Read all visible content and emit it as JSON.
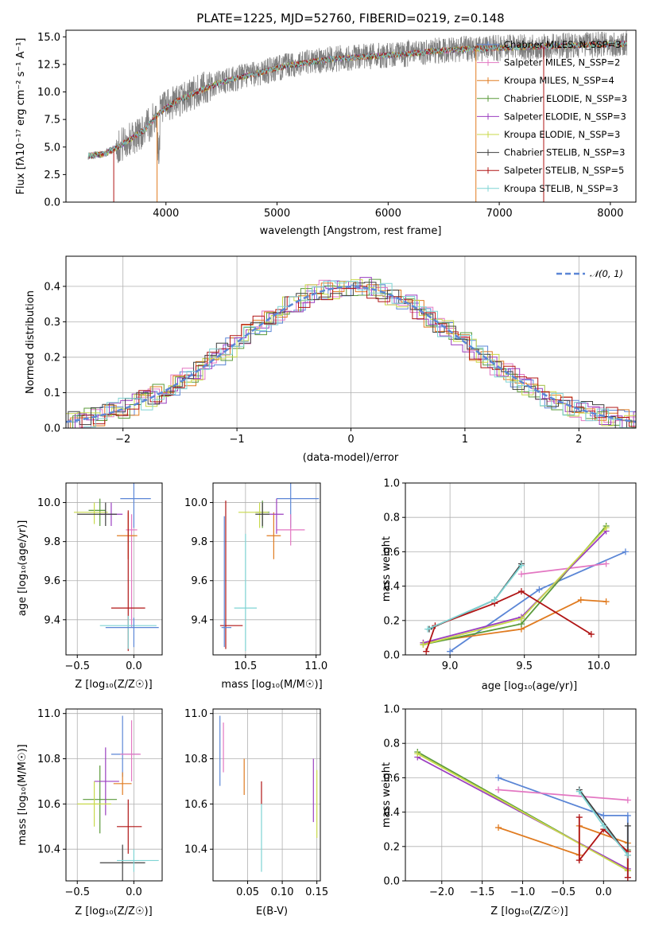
{
  "colors": {
    "chabrier_miles": "#5b86d6",
    "salpeter_miles": "#e377c2",
    "kroupa_miles": "#e07b20",
    "chabrier_elodie": "#5a9a3a",
    "salpeter_elodie": "#9b3fc0",
    "kroupa_elodie": "#c8d94a",
    "chabrier_stelib": "#404040",
    "salpeter_stelib": "#b01515",
    "kroupa_stelib": "#7fd4d4",
    "observed": "#808080",
    "gaussian": "#5b86d6"
  },
  "chart_data": [
    {
      "id": "spectrum",
      "type": "line",
      "title": "PLATE=1225, MJD=52760, FIBERID=0219, z=0.148",
      "xlabel": "wavelength [Angstrom, rest frame]",
      "ylabel": "Flux [fλ10⁻¹⁷ erg cm⁻² s⁻¹ A⁻¹]",
      "xlim": [
        3100,
        8230
      ],
      "ylim": [
        0,
        15.6
      ],
      "xticks": [
        "4000",
        "5000",
        "6000",
        "7000",
        "8000"
      ],
      "yticks": [
        "0.0",
        "2.5",
        "5.0",
        "7.5",
        "10.0",
        "12.5",
        "15.0"
      ],
      "legend": {
        "placement": "top-right",
        "entries": [
          "Chabrier MILES, N_SSP=3",
          "Salpeter MILES, N_SSP=2",
          "Kroupa MILES, N_SSP=4",
          "Chabrier ELODIE, N_SSP=3",
          "Salpeter ELODIE, N_SSP=3",
          "Kroupa ELODIE, N_SSP=3",
          "Chabrier STELIB, N_SSP=3",
          "Salpeter STELIB, N_SSP=5",
          "Kroupa STELIB, N_SSP=3"
        ]
      },
      "continuum": {
        "x": [
          3300,
          3450,
          3600,
          3800,
          3950,
          4100,
          4300,
          4500,
          4700,
          4900,
          5100,
          5300,
          5500,
          5800,
          6100,
          6400,
          6700,
          7000,
          7300,
          7600,
          7900,
          8150
        ],
        "y": [
          4.2,
          4.4,
          5.2,
          6.5,
          8.2,
          9.2,
          10.1,
          10.9,
          11.4,
          11.9,
          12.4,
          12.7,
          13.0,
          13.2,
          13.4,
          13.7,
          13.9,
          14.0,
          14.1,
          14.2,
          14.3,
          14.4
        ]
      }
    },
    {
      "id": "residuals",
      "type": "line",
      "xlabel": "(data-model)/error",
      "ylabel": "Normed distribution",
      "xlim": [
        -2.5,
        2.5
      ],
      "ylim": [
        0,
        0.485
      ],
      "xticks": [
        "−2",
        "−1",
        "0",
        "1",
        "2"
      ],
      "yticks": [
        "0.0",
        "0.1",
        "0.2",
        "0.3",
        "0.4"
      ],
      "legend": {
        "placement": "top-right",
        "entries": [
          "𝒩(0, 1)"
        ]
      }
    },
    {
      "id": "age_vs_Z",
      "type": "scatter",
      "xlabel": "Z [log₁₀(Z/Z☉)]",
      "ylabel": "age  [log₁₀(age/yr)]",
      "xlim": [
        -0.6,
        0.25
      ],
      "ylim": [
        9.22,
        10.1
      ],
      "xticks": [
        "−0.5",
        "0.0"
      ],
      "yticks": [
        "9.4",
        "9.6",
        "9.8",
        "10.0"
      ],
      "points": [
        {
          "x": 0.0,
          "y": 10.02,
          "xerr": [
            0.12,
            0.15
          ],
          "yerr": [
            0.15,
            0.08
          ]
        },
        {
          "x": -0.02,
          "y": 9.86,
          "xerr": [
            0.05,
            0.05
          ],
          "yerr": [
            0.5,
            0.08
          ]
        },
        {
          "x": -0.05,
          "y": 9.83,
          "xerr": [
            0.1,
            0.08
          ],
          "yerr": [
            0.12,
            0.12
          ]
        },
        {
          "x": -0.3,
          "y": 9.96,
          "xerr": [
            0.1,
            0.05
          ],
          "yerr": [
            0.08,
            0.06
          ]
        },
        {
          "x": -0.2,
          "y": 9.94,
          "xerr": [
            0.1,
            0.1
          ],
          "yerr": [
            0.06,
            0.06
          ]
        },
        {
          "x": -0.35,
          "y": 9.95,
          "xerr": [
            0.18,
            0.12
          ],
          "yerr": [
            0.06,
            0.05
          ]
        },
        {
          "x": -0.25,
          "y": 9.94,
          "xerr": [
            0.25,
            0.1
          ],
          "yerr": [
            0.06,
            0.06
          ]
        },
        {
          "x": -0.05,
          "y": 9.46,
          "xerr": [
            0.15,
            0.15
          ],
          "yerr": [
            0.22,
            0.5
          ]
        },
        {
          "x": -0.05,
          "y": 9.37,
          "xerr": [
            0.25,
            0.25
          ],
          "yerr": [
            0.12,
            0.05
          ]
        },
        {
          "x": 0.0,
          "y": 9.36,
          "xerr": [
            0.25,
            0.22
          ],
          "yerr": [
            0.1,
            0.05
          ]
        }
      ]
    },
    {
      "id": "age_vs_mass",
      "type": "scatter",
      "xlabel": "mass [log₁₀(M/M☉)]",
      "ylabel": "",
      "xlim": [
        10.27,
        11.03
      ],
      "ylim": [
        9.22,
        10.1
      ],
      "xticks": [
        "10.5",
        "11.0"
      ],
      "yticks": [
        "9.4",
        "9.6",
        "9.8",
        "10.0"
      ],
      "points": [
        {
          "x": 10.82,
          "y": 10.02,
          "xerr": [
            0.1,
            0.2
          ],
          "yerr": [
            0.15,
            0.08
          ]
        },
        {
          "x": 10.82,
          "y": 9.86,
          "xerr": [
            0.1,
            0.1
          ],
          "yerr": [
            0.08,
            0.08
          ]
        },
        {
          "x": 10.7,
          "y": 9.83,
          "xerr": [
            0.05,
            0.05
          ],
          "yerr": [
            0.12,
            0.12
          ]
        },
        {
          "x": 10.62,
          "y": 9.95,
          "xerr": [
            0.05,
            0.05
          ],
          "yerr": [
            0.08,
            0.06
          ]
        },
        {
          "x": 10.72,
          "y": 9.94,
          "xerr": [
            0.05,
            0.05
          ],
          "yerr": [
            0.1,
            0.08
          ]
        },
        {
          "x": 10.6,
          "y": 9.95,
          "xerr": [
            0.15,
            0.06
          ],
          "yerr": [
            0.08,
            0.05
          ]
        },
        {
          "x": 10.62,
          "y": 9.94,
          "xerr": [
            0.05,
            0.05
          ],
          "yerr": [
            0.06,
            0.06
          ]
        },
        {
          "x": 10.36,
          "y": 9.37,
          "xerr": [
            0.04,
            0.12
          ],
          "yerr": [
            0.12,
            0.64
          ]
        },
        {
          "x": 10.5,
          "y": 9.46,
          "xerr": [
            0.08,
            0.08
          ],
          "yerr": [
            0.22,
            0.38
          ]
        },
        {
          "x": 10.35,
          "y": 9.36,
          "xerr": [
            0.02,
            0.05
          ],
          "yerr": [
            0.1,
            0.57
          ]
        }
      ]
    },
    {
      "id": "mass_weight_vs_age",
      "type": "line",
      "xlabel": "age  [log₁₀(age/yr)]",
      "ylabel": "mass weight",
      "xlim": [
        8.7,
        10.25
      ],
      "ylim": [
        0,
        1.0
      ],
      "xticks": [
        "9.0",
        "9.5",
        "10.0"
      ],
      "yticks": [
        "0.0",
        "0.2",
        "0.4",
        "0.6",
        "0.8",
        "1.0"
      ],
      "series": [
        {
          "key": "chabrier_miles",
          "x": [
            9.0,
            9.6,
            10.18
          ],
          "y": [
            0.02,
            0.38,
            0.6
          ]
        },
        {
          "key": "salpeter_miles",
          "x": [
            9.48,
            10.05
          ],
          "y": [
            0.47,
            0.53
          ]
        },
        {
          "key": "kroupa_miles",
          "x": [
            8.82,
            9.48,
            9.88,
            10.05
          ],
          "y": [
            0.07,
            0.15,
            0.32,
            0.31
          ]
        },
        {
          "key": "chabrier_elodie",
          "x": [
            8.82,
            9.48,
            10.05
          ],
          "y": [
            0.06,
            0.18,
            0.75
          ]
        },
        {
          "key": "salpeter_elodie",
          "x": [
            8.82,
            9.48,
            10.05
          ],
          "y": [
            0.07,
            0.22,
            0.72
          ]
        },
        {
          "key": "kroupa_elodie",
          "x": [
            8.82,
            9.48,
            10.05
          ],
          "y": [
            0.06,
            0.21,
            0.74
          ]
        },
        {
          "key": "chabrier_stelib",
          "x": [
            8.86,
            9.3,
            9.48
          ],
          "y": [
            0.15,
            0.32,
            0.53
          ]
        },
        {
          "key": "salpeter_stelib",
          "x": [
            8.84,
            8.9,
            9.3,
            9.48,
            9.95
          ],
          "y": [
            0.02,
            0.17,
            0.3,
            0.37,
            0.12
          ]
        },
        {
          "key": "kroupa_stelib",
          "x": [
            8.85,
            9.3,
            9.48
          ],
          "y": [
            0.15,
            0.32,
            0.52
          ]
        }
      ]
    },
    {
      "id": "mass_vs_Z",
      "type": "scatter",
      "xlabel": "Z [log₁₀(Z/Z☉)]",
      "ylabel": "mass [log₁₀(M/M☉)]",
      "xlim": [
        -0.6,
        0.25
      ],
      "ylim": [
        10.26,
        11.02
      ],
      "xticks": [
        "−0.5",
        "0.0"
      ],
      "yticks": [
        "10.4",
        "10.6",
        "10.8",
        "11.0"
      ],
      "points": [
        {
          "x": -0.1,
          "y": 10.82,
          "xerr": [
            0.1,
            0.15
          ],
          "yerr": [
            0.1,
            0.17
          ]
        },
        {
          "x": -0.02,
          "y": 10.82,
          "xerr": [
            0.1,
            0.08
          ],
          "yerr": [
            0.12,
            0.15
          ]
        },
        {
          "x": -0.1,
          "y": 10.69,
          "xerr": [
            0.08,
            0.08
          ],
          "yerr": [
            0.05,
            0.05
          ]
        },
        {
          "x": -0.3,
          "y": 10.62,
          "xerr": [
            0.15,
            0.15
          ],
          "yerr": [
            0.15,
            0.15
          ]
        },
        {
          "x": -0.25,
          "y": 10.7,
          "xerr": [
            0.1,
            0.12
          ],
          "yerr": [
            0.15,
            0.15
          ]
        },
        {
          "x": -0.35,
          "y": 10.6,
          "xerr": [
            0.15,
            0.15
          ],
          "yerr": [
            0.1,
            0.1
          ]
        },
        {
          "x": -0.1,
          "y": 10.34,
          "xerr": [
            0.2,
            0.2
          ],
          "yerr": [
            0.08,
            0.08
          ]
        },
        {
          "x": -0.05,
          "y": 10.5,
          "xerr": [
            0.1,
            0.12
          ],
          "yerr": [
            0.12,
            0.12
          ]
        },
        {
          "x": 0.0,
          "y": 10.35,
          "xerr": [
            0.15,
            0.22
          ],
          "yerr": [
            0.05,
            0.05
          ]
        }
      ]
    },
    {
      "id": "mass_vs_ebv",
      "type": "scatter",
      "xlabel": "E(B-V)",
      "ylabel": "",
      "xlim": [
        0.0,
        0.155
      ],
      "ylim": [
        10.26,
        11.02
      ],
      "xticks": [
        "0.05",
        "0.10",
        "0.15"
      ],
      "yticks": [
        "10.4",
        "10.6",
        "10.8",
        "11.0"
      ],
      "points": [
        {
          "key": "chabrier_miles",
          "x": 0.01,
          "y": 10.84,
          "xerr": [
            0,
            0
          ],
          "yerr": [
            0.16,
            0.15
          ]
        },
        {
          "key": "salpeter_miles",
          "x": 0.015,
          "y": 10.86,
          "xerr": [
            0,
            0
          ],
          "yerr": [
            0.12,
            0.1
          ]
        },
        {
          "key": "kroupa_miles",
          "x": 0.045,
          "y": 10.72,
          "xerr": [
            0,
            0
          ],
          "yerr": [
            0.08,
            0.08
          ]
        },
        {
          "key": "salpeter_stelib",
          "x": 0.07,
          "y": 10.65,
          "xerr": [
            0,
            0
          ],
          "yerr": [
            0.05,
            0.05
          ]
        },
        {
          "key": "kroupa_stelib",
          "x": 0.07,
          "y": 10.45,
          "xerr": [
            0,
            0
          ],
          "yerr": [
            0.15,
            0.15
          ]
        },
        {
          "key": "salpeter_elodie",
          "x": 0.145,
          "y": 10.66,
          "xerr": [
            0,
            0
          ],
          "yerr": [
            0.14,
            0.14
          ]
        },
        {
          "key": "kroupa_elodie",
          "x": 0.15,
          "y": 10.6,
          "xerr": [
            0,
            0
          ],
          "yerr": [
            0.15,
            0.15
          ]
        }
      ]
    },
    {
      "id": "mass_weight_vs_Z",
      "type": "line",
      "xlabel": "Z [log₁₀(Z/Z☉)]",
      "ylabel": "mass weight",
      "xlim": [
        -2.45,
        0.4
      ],
      "ylim": [
        0,
        1.0
      ],
      "xticks": [
        "−2.0",
        "−1.5",
        "−1.0",
        "−0.5",
        "0.0"
      ],
      "yticks": [
        "0.0",
        "0.2",
        "0.4",
        "0.6",
        "0.8",
        "1.0"
      ],
      "series": [
        {
          "key": "chabrier_miles",
          "x": [
            -1.3,
            0.0,
            0.3,
            0.3
          ],
          "y": [
            0.6,
            0.38,
            0.38,
            0.02
          ]
        },
        {
          "key": "salpeter_miles",
          "x": [
            -1.3,
            0.3
          ],
          "y": [
            0.53,
            0.47
          ]
        },
        {
          "key": "kroupa_miles",
          "x": [
            -1.3,
            -0.3,
            -0.3,
            0.3
          ],
          "y": [
            0.31,
            0.15,
            0.32,
            0.22
          ]
        },
        {
          "key": "chabrier_elodie",
          "x": [
            -2.3,
            0.3,
            0.3
          ],
          "y": [
            0.75,
            0.06,
            0.18
          ]
        },
        {
          "key": "salpeter_elodie",
          "x": [
            -2.3,
            0.3
          ],
          "y": [
            0.72,
            0.07
          ]
        },
        {
          "key": "kroupa_elodie",
          "x": [
            -2.3,
            0.3
          ],
          "y": [
            0.74,
            0.06
          ]
        },
        {
          "key": "chabrier_stelib",
          "x": [
            -0.3,
            0.3,
            0.3
          ],
          "y": [
            0.53,
            0.15,
            0.32
          ]
        },
        {
          "key": "salpeter_stelib",
          "x": [
            -0.3,
            -0.3,
            0.0,
            0.3,
            0.3
          ],
          "y": [
            0.37,
            0.12,
            0.3,
            0.17,
            0.02
          ]
        },
        {
          "key": "kroupa_stelib",
          "x": [
            -0.3,
            0.0,
            0.3
          ],
          "y": [
            0.52,
            0.32,
            0.15
          ]
        }
      ]
    }
  ]
}
